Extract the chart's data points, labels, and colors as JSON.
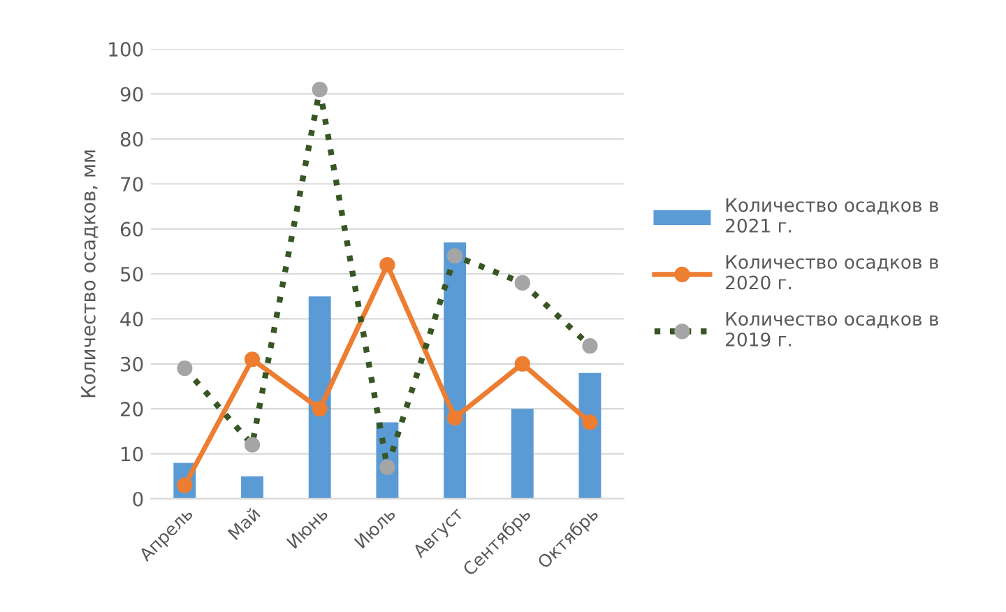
{
  "chart_data": {
    "type": "bar",
    "ylabel": "Количество осадков, мм",
    "categories": [
      "Апрель",
      "Май",
      "Июнь",
      "Июль",
      "Август",
      "Сентябрь",
      "Октябрь"
    ],
    "series": [
      {
        "name": "Количество осадков в 2021 г.",
        "color": "#5b9bd5",
        "values": [
          8,
          5,
          45,
          17,
          57,
          20,
          28
        ]
      },
      {
        "name": "Количество осадков в 2020 г.",
        "type": "line",
        "color": "#ed7d31",
        "marker": "circle",
        "line_style": "solid",
        "values": [
          3,
          31,
          20,
          52,
          18,
          30,
          17
        ]
      },
      {
        "name": "Количество осадков в 2019 г.",
        "type": "line",
        "color": "#375623",
        "colors": [
          "#a5a5a5",
          "#a5a5a5",
          "#a5a5a5",
          "#a5a5a5",
          "#a5a5a5",
          "#a5a5a5",
          "#a5a5a5"
        ],
        "marker": "circle",
        "line_style": "dotted",
        "values": [
          29,
          12,
          91,
          7,
          54,
          48,
          34
        ]
      }
    ],
    "ylim": [
      0,
      100
    ],
    "yticks": [
      0,
      10,
      20,
      30,
      40,
      50,
      60,
      70,
      80,
      90,
      100
    ],
    "grid": "y",
    "legend": "right"
  }
}
